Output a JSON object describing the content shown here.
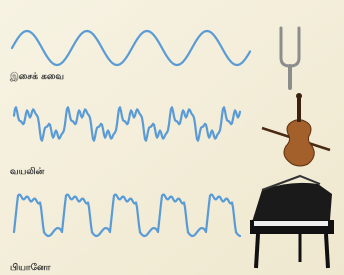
{
  "rows": [
    {
      "label": "இசைக் கவை"
    },
    {
      "label": "வயலின்"
    },
    {
      "label": "பியானோ"
    }
  ]
}
